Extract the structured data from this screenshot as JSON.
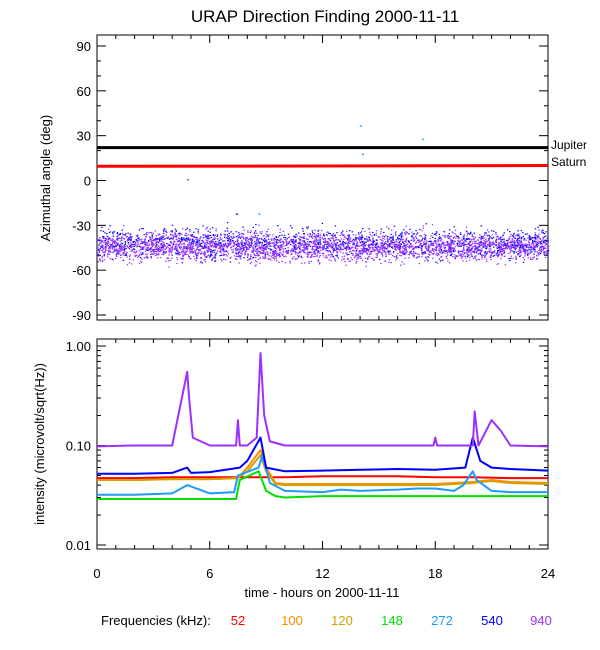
{
  "chart_data": [
    {
      "type": "scatter",
      "title": "URAP Direction Finding  2000-11-11",
      "xlabel": "",
      "ylabel": "Azimuthal angle (deg)",
      "xlim": [
        0,
        24
      ],
      "ylim": [
        -90,
        90
      ],
      "y_ticks": [
        -90,
        -60,
        -30,
        0,
        30,
        60,
        90
      ],
      "x_ticks": [
        0,
        6,
        12,
        18,
        24
      ],
      "reference_lines": [
        {
          "name": "Jupiter",
          "color": "#000000",
          "x": [
            0,
            12,
            24
          ],
          "y": [
            22,
            22,
            22
          ]
        },
        {
          "name": "Saturn",
          "color": "#ff0000",
          "x": [
            0,
            12,
            24
          ],
          "y": [
            9.5,
            9.7,
            10
          ]
        }
      ],
      "series": [
        {
          "freq": "540",
          "color": "#0000ff",
          "center": -42,
          "spread": 7
        },
        {
          "freq": "940",
          "color": "#9b30ff",
          "center": -44,
          "spread": 7
        }
      ],
      "outlier_points": [
        {
          "freq": "272",
          "x": 14.0,
          "y": 37
        },
        {
          "freq": "272",
          "x": 17.3,
          "y": 28
        },
        {
          "freq": "272",
          "x": 14.1,
          "y": 18
        },
        {
          "freq": "940",
          "x": 4.8,
          "y": 1
        },
        {
          "freq": "272",
          "x": 8.6,
          "y": -22
        },
        {
          "freq": "540",
          "x": 7.4,
          "y": -22
        }
      ]
    },
    {
      "type": "line",
      "xlabel": "time - hours on 2000-11-11",
      "ylabel": "intensity (microvolt/sqrt(Hz))",
      "xlim": [
        0,
        24
      ],
      "ylim": [
        0.01,
        1.0
      ],
      "yscale": "log",
      "y_ticks": [
        0.01,
        0.1,
        1.0
      ],
      "y_tick_labels": [
        "0.01",
        "0.10",
        "1.00"
      ],
      "x_ticks": [
        0,
        6,
        12,
        18,
        24
      ],
      "series": [
        {
          "freq": "52",
          "color": "#ff0000",
          "x": [
            0,
            2,
            4,
            6,
            8,
            10,
            12,
            14,
            16,
            18,
            20,
            22,
            24
          ],
          "y": [
            0.047,
            0.047,
            0.048,
            0.048,
            0.048,
            0.048,
            0.049,
            0.049,
            0.049,
            0.048,
            0.048,
            0.047,
            0.047
          ]
        },
        {
          "freq": "100",
          "color": "#ff8c00",
          "x": [
            0,
            2,
            4,
            6,
            7.5,
            8,
            8.7,
            9,
            9.5,
            10,
            12,
            14,
            16,
            18,
            19,
            20,
            21,
            22,
            24
          ],
          "y": [
            0.045,
            0.045,
            0.046,
            0.046,
            0.047,
            0.06,
            0.09,
            0.06,
            0.042,
            0.041,
            0.041,
            0.041,
            0.041,
            0.041,
            0.042,
            0.043,
            0.045,
            0.043,
            0.042
          ]
        },
        {
          "freq": "120",
          "color": "#d4a000",
          "x": [
            0,
            2,
            4,
            6,
            7.5,
            8,
            8.7,
            9,
            9.5,
            10,
            12,
            14,
            16,
            18,
            19,
            20,
            21,
            22,
            24
          ],
          "y": [
            0.045,
            0.045,
            0.046,
            0.046,
            0.047,
            0.055,
            0.08,
            0.055,
            0.041,
            0.04,
            0.04,
            0.04,
            0.04,
            0.04,
            0.041,
            0.042,
            0.044,
            0.042,
            0.041
          ]
        },
        {
          "freq": "148",
          "color": "#00e000",
          "x": [
            0,
            2,
            4,
            6,
            7.4,
            7.6,
            8.6,
            9,
            9.5,
            10,
            12,
            14,
            16,
            18,
            20,
            22,
            24
          ],
          "y": [
            0.029,
            0.029,
            0.029,
            0.029,
            0.029,
            0.045,
            0.055,
            0.035,
            0.031,
            0.03,
            0.031,
            0.031,
            0.031,
            0.031,
            0.031,
            0.031,
            0.031
          ]
        },
        {
          "freq": "272",
          "color": "#1e9bff",
          "x": [
            0,
            2,
            4,
            4.8,
            6,
            7.3,
            7.5,
            8.6,
            8.8,
            9.2,
            10,
            12,
            13,
            14,
            16,
            17,
            18,
            19,
            19.5,
            20,
            20.2,
            21,
            22,
            24
          ],
          "y": [
            0.032,
            0.032,
            0.033,
            0.04,
            0.033,
            0.034,
            0.05,
            0.06,
            0.08,
            0.042,
            0.035,
            0.034,
            0.036,
            0.035,
            0.036,
            0.037,
            0.037,
            0.035,
            0.04,
            0.055,
            0.045,
            0.035,
            0.034,
            0.034
          ]
        },
        {
          "freq": "540",
          "color": "#0000ff",
          "x": [
            0,
            2,
            4,
            4.8,
            5,
            6,
            7.6,
            8,
            8.7,
            9,
            10,
            12,
            14,
            16,
            18,
            19.6,
            20,
            20.4,
            21,
            22,
            24
          ],
          "y": [
            0.052,
            0.052,
            0.053,
            0.06,
            0.053,
            0.054,
            0.06,
            0.07,
            0.12,
            0.06,
            0.055,
            0.056,
            0.057,
            0.058,
            0.057,
            0.06,
            0.12,
            0.07,
            0.06,
            0.058,
            0.056
          ]
        },
        {
          "freq": "940",
          "color": "#9b30ff",
          "x": [
            0,
            2,
            4,
            4.8,
            4.9,
            5.1,
            6,
            7.4,
            7.5,
            7.6,
            8,
            8.5,
            8.7,
            8.9,
            9.2,
            10,
            12,
            14,
            16,
            17.9,
            18,
            18.1,
            19,
            20,
            20.1,
            20.3,
            21,
            21.5,
            22,
            24
          ],
          "y": [
            0.098,
            0.1,
            0.1,
            0.55,
            0.3,
            0.12,
            0.1,
            0.1,
            0.18,
            0.1,
            0.1,
            0.12,
            0.85,
            0.2,
            0.11,
            0.1,
            0.1,
            0.1,
            0.1,
            0.1,
            0.12,
            0.1,
            0.1,
            0.1,
            0.22,
            0.1,
            0.18,
            0.14,
            0.1,
            0.098
          ]
        }
      ]
    }
  ],
  "labels": {
    "jupiter": "Jupiter",
    "saturn": "Saturn",
    "frequencies_label": "Frequencies (kHz):"
  },
  "legend": [
    {
      "label": "52",
      "color": "#ff0000"
    },
    {
      "label": "100",
      "color": "#ff8c00"
    },
    {
      "label": "120",
      "color": "#d4a000"
    },
    {
      "label": "148",
      "color": "#00e000"
    },
    {
      "label": "272",
      "color": "#1e9bff"
    },
    {
      "label": "540",
      "color": "#0000ff"
    },
    {
      "label": "940",
      "color": "#9b30ff"
    }
  ]
}
